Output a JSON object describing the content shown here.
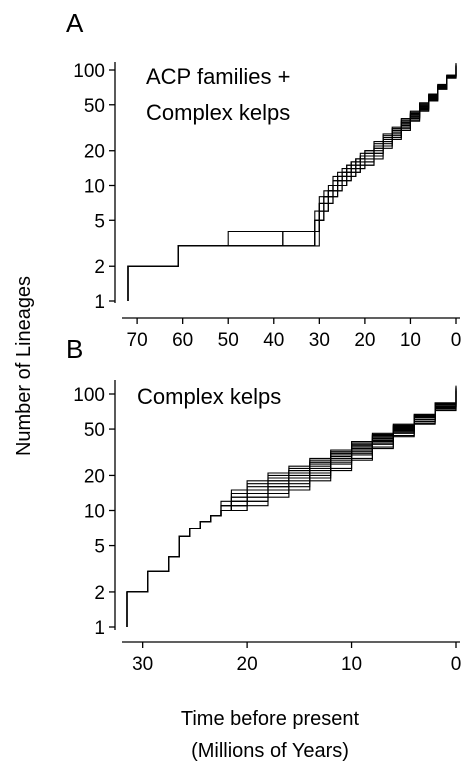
{
  "figure": {
    "ylabel": "Number of Lineages",
    "xlabel_line1": "Time before present",
    "xlabel_line2": "(Millions  of Years)"
  },
  "chart_data": [
    {
      "type": "line",
      "panel": "A",
      "annotation": [
        "ACP families +",
        "Complex kelps"
      ],
      "x_ticks": [
        70,
        60,
        50,
        40,
        30,
        20,
        10,
        0
      ],
      "y_ticks": [
        1,
        2,
        5,
        10,
        20,
        50,
        100
      ],
      "y_scale": "log",
      "xlim": [
        72,
        0
      ],
      "ylim": [
        1,
        120
      ],
      "grid": false,
      "series_count": 12,
      "x": [
        72,
        61,
        50,
        38,
        31,
        30,
        29,
        28,
        27,
        26,
        25,
        24,
        23,
        22,
        21,
        20,
        18,
        16,
        14,
        12,
        10,
        8,
        6,
        4,
        2,
        0
      ],
      "series": [
        {
          "values": [
            2,
            3,
            4,
            4,
            4,
            7,
            8,
            9,
            11,
            12,
            13,
            14,
            16,
            17,
            18,
            20,
            24,
            28,
            32,
            38,
            44,
            52,
            62,
            75,
            90,
            110
          ]
        },
        {
          "values": [
            2,
            3,
            3,
            4,
            4,
            6,
            7,
            8,
            10,
            11,
            12,
            13,
            14,
            15,
            17,
            18,
            22,
            26,
            31,
            37,
            43,
            51,
            61,
            74,
            90,
            112
          ]
        },
        {
          "values": [
            2,
            3,
            3,
            3,
            4,
            5,
            6,
            7,
            8,
            9,
            10,
            11,
            12,
            13,
            14,
            15,
            18,
            22,
            26,
            32,
            38,
            46,
            56,
            70,
            87,
            110
          ]
        },
        {
          "values": [
            2,
            3,
            3,
            4,
            6,
            8,
            9,
            10,
            12,
            13,
            14,
            15,
            16,
            17,
            18,
            19,
            22,
            25,
            29,
            34,
            40,
            48,
            58,
            72,
            90,
            115
          ]
        },
        {
          "values": [
            2,
            3,
            3,
            3,
            5,
            6,
            7,
            8,
            9,
            10,
            11,
            12,
            13,
            14,
            15,
            16,
            19,
            23,
            27,
            33,
            39,
            47,
            57,
            71,
            88,
            108
          ]
        },
        {
          "values": [
            2,
            3,
            3,
            3,
            4,
            6,
            7,
            9,
            11,
            12,
            13,
            14,
            15,
            16,
            17,
            18,
            21,
            25,
            29,
            35,
            41,
            49,
            59,
            72,
            88,
            110
          ]
        },
        {
          "values": [
            2,
            3,
            3,
            3,
            3,
            5,
            6,
            7,
            8,
            9,
            10,
            11,
            12,
            13,
            14,
            15,
            17,
            21,
            25,
            30,
            36,
            44,
            54,
            68,
            85,
            106
          ]
        },
        {
          "values": [
            2,
            3,
            3,
            4,
            5,
            7,
            8,
            9,
            10,
            11,
            12,
            13,
            14,
            16,
            17,
            18,
            21,
            24,
            28,
            33,
            39,
            47,
            57,
            70,
            86,
            105
          ]
        },
        {
          "values": [
            2,
            3,
            3,
            3,
            4,
            5,
            6,
            8,
            9,
            11,
            12,
            13,
            14,
            15,
            16,
            17,
            20,
            24,
            28,
            34,
            40,
            48,
            58,
            71,
            88,
            112
          ]
        },
        {
          "values": [
            2,
            3,
            3,
            4,
            4,
            6,
            8,
            9,
            10,
            12,
            13,
            15,
            16,
            17,
            19,
            20,
            23,
            27,
            31,
            36,
            42,
            50,
            60,
            73,
            89,
            108
          ]
        },
        {
          "values": [
            2,
            3,
            3,
            3,
            4,
            5,
            6,
            7,
            9,
            10,
            11,
            12,
            13,
            14,
            15,
            16,
            19,
            22,
            26,
            31,
            37,
            45,
            55,
            69,
            86,
            109
          ]
        },
        {
          "values": [
            2,
            3,
            3,
            3,
            5,
            7,
            8,
            9,
            10,
            11,
            12,
            13,
            15,
            16,
            17,
            19,
            22,
            26,
            30,
            35,
            41,
            49,
            60,
            73,
            90,
            113
          ]
        }
      ]
    },
    {
      "type": "line",
      "panel": "B",
      "annotation": [
        "Complex kelps"
      ],
      "x_ticks": [
        30,
        20,
        10,
        0
      ],
      "y_ticks": [
        1,
        2,
        5,
        10,
        20,
        50,
        100
      ],
      "y_scale": "log",
      "xlim": [
        31.5,
        0
      ],
      "ylim": [
        1,
        120
      ],
      "grid": false,
      "series_count": 12,
      "x": [
        31.5,
        29.5,
        27.5,
        26.5,
        25.5,
        24.5,
        23.5,
        22.5,
        21.5,
        20,
        18,
        16,
        14,
        12,
        10,
        8,
        6,
        4,
        2,
        0
      ],
      "series": [
        {
          "values": [
            2,
            3,
            4,
            6,
            7,
            8,
            9,
            10,
            11,
            13,
            15,
            18,
            21,
            26,
            31,
            38,
            47,
            58,
            75,
            110
          ]
        },
        {
          "values": [
            2,
            3,
            4,
            6,
            7,
            8,
            9,
            11,
            13,
            15,
            18,
            21,
            25,
            30,
            35,
            42,
            51,
            63,
            80,
            114
          ]
        },
        {
          "values": [
            2,
            3,
            4,
            6,
            7,
            8,
            9,
            10,
            10,
            11,
            13,
            15,
            18,
            22,
            27,
            34,
            43,
            55,
            72,
            105
          ]
        },
        {
          "values": [
            2,
            3,
            4,
            6,
            7,
            8,
            9,
            11,
            14,
            17,
            20,
            23,
            27,
            32,
            38,
            45,
            54,
            66,
            83,
            116
          ]
        },
        {
          "values": [
            2,
            3,
            4,
            6,
            7,
            8,
            9,
            10,
            12,
            14,
            17,
            20,
            24,
            29,
            34,
            41,
            50,
            61,
            78,
            108
          ]
        },
        {
          "values": [
            2,
            3,
            4,
            6,
            7,
            8,
            9,
            10,
            11,
            12,
            14,
            17,
            20,
            25,
            30,
            37,
            46,
            58,
            76,
            112
          ]
        },
        {
          "values": [
            2,
            3,
            4,
            6,
            7,
            8,
            9,
            12,
            15,
            18,
            21,
            24,
            28,
            33,
            39,
            46,
            55,
            67,
            84,
            118
          ]
        },
        {
          "values": [
            2,
            3,
            4,
            6,
            7,
            8,
            9,
            10,
            11,
            13,
            16,
            19,
            23,
            28,
            33,
            40,
            49,
            60,
            77,
            106
          ]
        },
        {
          "values": [
            2,
            3,
            4,
            6,
            7,
            8,
            9,
            10,
            12,
            15,
            18,
            22,
            26,
            31,
            37,
            44,
            53,
            65,
            82,
            115
          ]
        },
        {
          "values": [
            2,
            3,
            4,
            6,
            7,
            8,
            9,
            10,
            10,
            12,
            14,
            16,
            19,
            23,
            28,
            35,
            44,
            56,
            73,
            107
          ]
        },
        {
          "values": [
            2,
            3,
            4,
            6,
            7,
            8,
            9,
            11,
            13,
            16,
            19,
            22,
            26,
            31,
            36,
            43,
            52,
            64,
            81,
            111
          ]
        },
        {
          "values": [
            2,
            3,
            4,
            6,
            7,
            8,
            9,
            10,
            12,
            14,
            16,
            19,
            22,
            27,
            32,
            39,
            48,
            60,
            78,
            113
          ]
        }
      ]
    }
  ]
}
